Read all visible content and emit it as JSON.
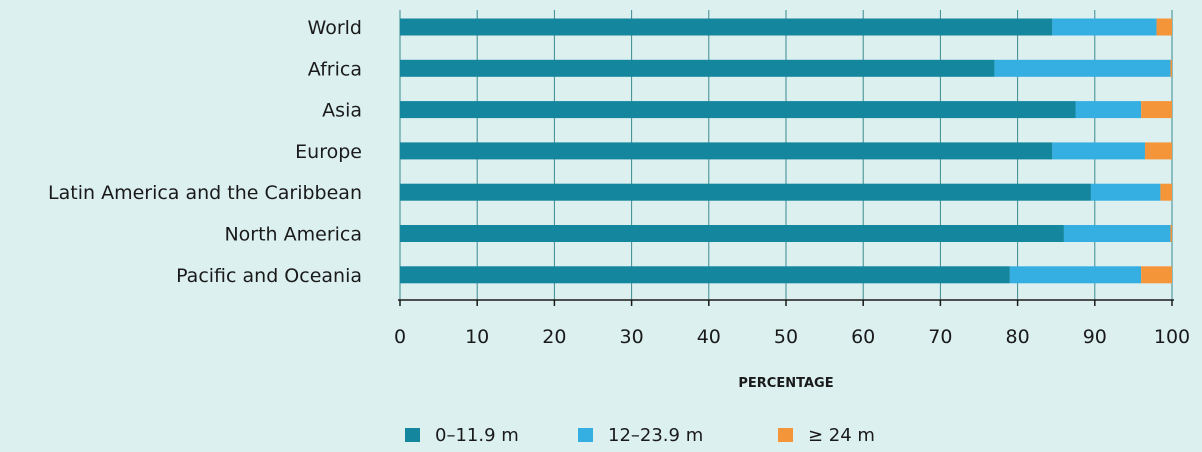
{
  "chart_data": {
    "type": "bar",
    "orientation": "horizontal",
    "stacked": true,
    "categories": [
      "World",
      "Africa",
      "Asia",
      "Europe",
      "Latin America and the Caribbean",
      "North America",
      "Pacific and Oceania"
    ],
    "series": [
      {
        "name": "0–11.9 m",
        "color": "#14869e",
        "values": [
          84.5,
          77,
          87.5,
          84.5,
          89.5,
          86,
          79
        ]
      },
      {
        "name": "12–23.9 m",
        "color": "#35aee2",
        "values": [
          13.5,
          22.8,
          8.5,
          12,
          9,
          13.8,
          17
        ]
      },
      {
        "name": "≥ 24 m",
        "color": "#f5953a",
        "values": [
          2,
          0.2,
          4,
          3.5,
          1.5,
          0.2,
          4
        ]
      }
    ],
    "xlabel": "PERCENTAGE",
    "ylabel": "",
    "xlim": [
      0,
      100
    ],
    "xticks": [
      "0",
      "10",
      "20",
      "30",
      "40",
      "50",
      "60",
      "70",
      "80",
      "90",
      "100"
    ],
    "grid": "vertical",
    "legend": "bottom-center"
  }
}
